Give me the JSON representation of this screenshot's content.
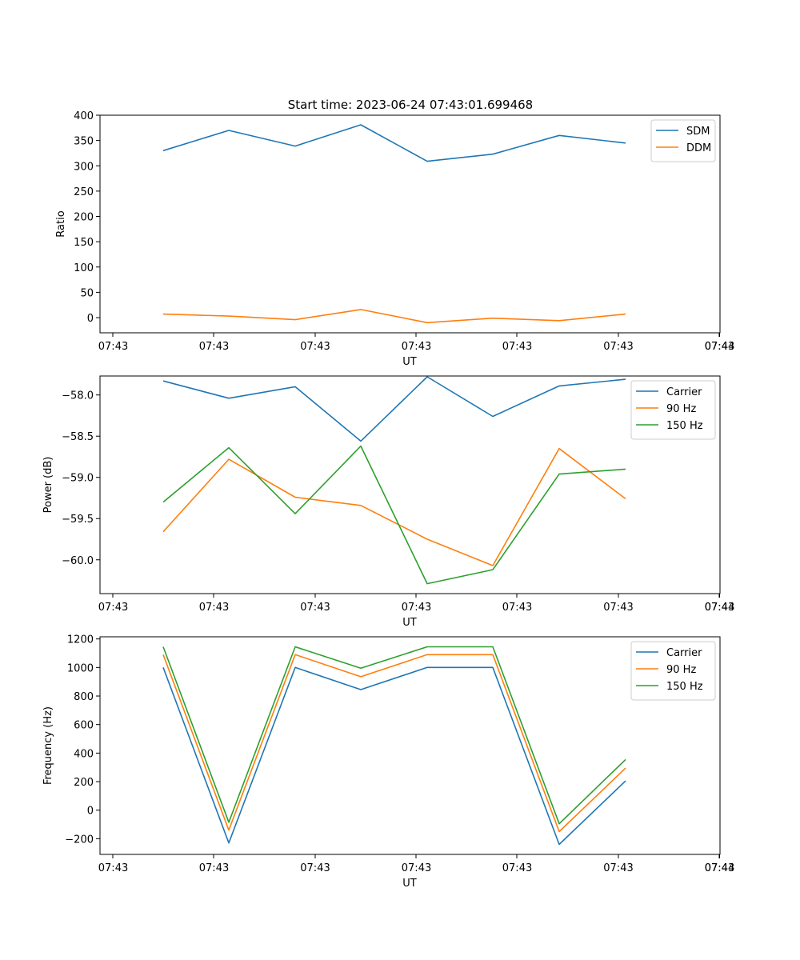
{
  "figure": {
    "title": "Start time: 2023-06-24 07:43:01.699468"
  },
  "chart_data": [
    {
      "type": "line",
      "xlabel": "UT",
      "ylabel": "Ratio",
      "x_tick_labels": [
        "07:43",
        "07:43",
        "07:43",
        "07:43",
        "07:43",
        "07:43",
        "07:43",
        "07:44"
      ],
      "y_ticks": [
        0,
        50,
        100,
        150,
        200,
        250,
        300,
        350,
        400
      ],
      "y_tick_labels": [
        "0",
        "50",
        "100",
        "150",
        "200",
        "250",
        "300",
        "350",
        "400"
      ],
      "ylim": [
        -30,
        400
      ],
      "legend_position": "top-right",
      "series": [
        {
          "name": "SDM",
          "color": "#1f77b4",
          "values": [
            330,
            370,
            339,
            381,
            309,
            323,
            360,
            345
          ]
        },
        {
          "name": "DDM",
          "color": "#ff7f0e",
          "values": [
            7,
            3,
            -4,
            16,
            -10,
            -1,
            -6,
            7
          ]
        }
      ]
    },
    {
      "type": "line",
      "xlabel": "UT",
      "ylabel": "Power (dB)",
      "x_tick_labels": [
        "07:43",
        "07:43",
        "07:43",
        "07:43",
        "07:43",
        "07:43",
        "07:43",
        "07:44"
      ],
      "y_ticks": [
        -58.0,
        -58.5,
        -59.0,
        -59.5,
        -60.0
      ],
      "y_tick_labels": [
        "−58.0",
        "−58.5",
        "−59.0",
        "−59.5",
        "−60.0"
      ],
      "ylim": [
        -60.41,
        -57.77
      ],
      "legend_position": "top-right",
      "series": [
        {
          "name": "Carrier",
          "color": "#1f77b4",
          "values": [
            -57.83,
            -58.04,
            -57.9,
            -58.56,
            -57.78,
            -58.26,
            -57.89,
            -57.81
          ]
        },
        {
          "name": "90 Hz",
          "color": "#ff7f0e",
          "values": [
            -59.66,
            -58.78,
            -59.24,
            -59.34,
            -59.75,
            -60.07,
            -58.65,
            -59.26
          ]
        },
        {
          "name": "150 Hz",
          "color": "#2ca02c",
          "values": [
            -59.3,
            -58.64,
            -59.44,
            -58.62,
            -60.29,
            -60.12,
            -58.96,
            -58.9
          ]
        }
      ]
    },
    {
      "type": "line",
      "xlabel": "UT",
      "ylabel": "Frequency (Hz)",
      "x_tick_labels": [
        "07:43",
        "07:43",
        "07:43",
        "07:43",
        "07:43",
        "07:43",
        "07:43",
        "07:44"
      ],
      "y_ticks": [
        -200,
        0,
        200,
        400,
        600,
        800,
        1000,
        1200
      ],
      "y_tick_labels": [
        "−200",
        "0",
        "200",
        "400",
        "600",
        "800",
        "1000",
        "1200"
      ],
      "ylim": [
        -310,
        1215
      ],
      "legend_position": "top-right",
      "series": [
        {
          "name": "Carrier",
          "color": "#1f77b4",
          "values": [
            1000,
            -230,
            1000,
            845,
            1000,
            1000,
            -240,
            205
          ]
        },
        {
          "name": "90 Hz",
          "color": "#ff7f0e",
          "values": [
            1090,
            -140,
            1090,
            935,
            1090,
            1090,
            -150,
            295
          ]
        },
        {
          "name": "150 Hz",
          "color": "#2ca02c",
          "values": [
            1145,
            -85,
            1145,
            995,
            1145,
            1145,
            -95,
            355
          ]
        }
      ]
    }
  ]
}
